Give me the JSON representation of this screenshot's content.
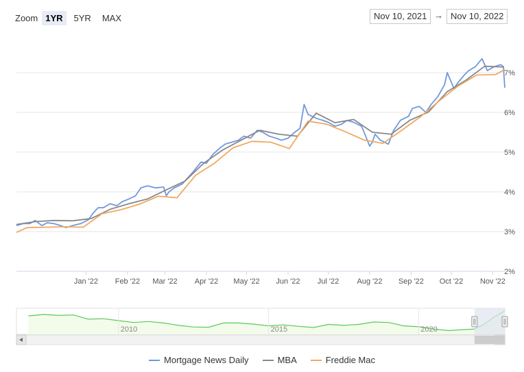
{
  "zoom": {
    "label": "Zoom",
    "buttons": [
      {
        "label": "1YR",
        "active": true
      },
      {
        "label": "5YR",
        "active": false
      },
      {
        "label": "MAX",
        "active": false
      }
    ]
  },
  "range": {
    "from": "Nov 10, 2021",
    "separator": "→",
    "to": "Nov 10, 2022"
  },
  "colors": {
    "mnd": "#6f98e0",
    "mba": "#888888",
    "fm": "#f0a860",
    "nav_line": "#5ac85a",
    "nav_fill": "#f3fbea",
    "grid": "#e6e6e6",
    "nav_select": "#dfe4ef"
  },
  "chart_data": {
    "type": "line",
    "title": "",
    "xlabel": "",
    "ylabel": "",
    "x_range": [
      "2021-11-10",
      "2022-11-10"
    ],
    "y_range": [
      2,
      8
    ],
    "y_ticks": [
      {
        "value": 2,
        "label": "2%"
      },
      {
        "value": 3,
        "label": "3%"
      },
      {
        "value": 4,
        "label": "4%"
      },
      {
        "value": 5,
        "label": "5%"
      },
      {
        "value": 6,
        "label": "6%"
      },
      {
        "value": 7,
        "label": "7%"
      }
    ],
    "x_ticks": [
      {
        "date": "2022-01-01",
        "label": "Jan '22"
      },
      {
        "date": "2022-02-01",
        "label": "Feb '22"
      },
      {
        "date": "2022-03-01",
        "label": "Mar '22"
      },
      {
        "date": "2022-04-01",
        "label": "Apr '22"
      },
      {
        "date": "2022-05-01",
        "label": "May '22"
      },
      {
        "date": "2022-06-01",
        "label": "Jun '22"
      },
      {
        "date": "2022-07-01",
        "label": "Jul '22"
      },
      {
        "date": "2022-08-01",
        "label": "Aug '22"
      },
      {
        "date": "2022-09-01",
        "label": "Sep '22"
      },
      {
        "date": "2022-10-01",
        "label": "Oct '22"
      },
      {
        "date": "2022-11-01",
        "label": "Nov '22"
      }
    ],
    "grid": true,
    "legend_position": "bottom-center",
    "series": [
      {
        "name": "Mortgage News Daily",
        "color_key": "mnd",
        "points": [
          [
            "2021-11-10",
            3.15
          ],
          [
            "2021-11-15",
            3.2
          ],
          [
            "2021-11-20",
            3.2
          ],
          [
            "2021-11-24",
            3.28
          ],
          [
            "2021-11-29",
            3.15
          ],
          [
            "2021-12-03",
            3.22
          ],
          [
            "2021-12-08",
            3.2
          ],
          [
            "2021-12-13",
            3.15
          ],
          [
            "2021-12-17",
            3.1
          ],
          [
            "2021-12-22",
            3.15
          ],
          [
            "2021-12-28",
            3.2
          ],
          [
            "2022-01-03",
            3.3
          ],
          [
            "2022-01-06",
            3.45
          ],
          [
            "2022-01-10",
            3.6
          ],
          [
            "2022-01-14",
            3.6
          ],
          [
            "2022-01-19",
            3.7
          ],
          [
            "2022-01-24",
            3.65
          ],
          [
            "2022-01-28",
            3.75
          ],
          [
            "2022-02-02",
            3.82
          ],
          [
            "2022-02-07",
            3.9
          ],
          [
            "2022-02-11",
            4.1
          ],
          [
            "2022-02-16",
            4.15
          ],
          [
            "2022-02-22",
            4.1
          ],
          [
            "2022-02-28",
            4.12
          ],
          [
            "2022-03-02",
            3.9
          ],
          [
            "2022-03-04",
            4.0
          ],
          [
            "2022-03-08",
            4.1
          ],
          [
            "2022-03-14",
            4.2
          ],
          [
            "2022-03-18",
            4.35
          ],
          [
            "2022-03-22",
            4.5
          ],
          [
            "2022-03-28",
            4.75
          ],
          [
            "2022-04-01",
            4.72
          ],
          [
            "2022-04-06",
            4.95
          ],
          [
            "2022-04-11",
            5.1
          ],
          [
            "2022-04-15",
            5.2
          ],
          [
            "2022-04-20",
            5.25
          ],
          [
            "2022-04-25",
            5.3
          ],
          [
            "2022-04-29",
            5.4
          ],
          [
            "2022-05-04",
            5.35
          ],
          [
            "2022-05-09",
            5.55
          ],
          [
            "2022-05-13",
            5.5
          ],
          [
            "2022-05-18",
            5.4
          ],
          [
            "2022-05-23",
            5.35
          ],
          [
            "2022-05-27",
            5.3
          ],
          [
            "2022-06-01",
            5.35
          ],
          [
            "2022-06-06",
            5.5
          ],
          [
            "2022-06-10",
            5.6
          ],
          [
            "2022-06-13",
            6.2
          ],
          [
            "2022-06-16",
            5.95
          ],
          [
            "2022-06-22",
            5.85
          ],
          [
            "2022-06-27",
            5.8
          ],
          [
            "2022-07-01",
            5.75
          ],
          [
            "2022-07-06",
            5.65
          ],
          [
            "2022-07-11",
            5.7
          ],
          [
            "2022-07-15",
            5.8
          ],
          [
            "2022-07-20",
            5.75
          ],
          [
            "2022-07-26",
            5.65
          ],
          [
            "2022-08-01",
            5.15
          ],
          [
            "2022-08-03",
            5.25
          ],
          [
            "2022-08-05",
            5.45
          ],
          [
            "2022-08-09",
            5.3
          ],
          [
            "2022-08-15",
            5.2
          ],
          [
            "2022-08-19",
            5.55
          ],
          [
            "2022-08-24",
            5.8
          ],
          [
            "2022-08-30",
            5.9
          ],
          [
            "2022-09-02",
            6.1
          ],
          [
            "2022-09-07",
            6.15
          ],
          [
            "2022-09-12",
            6.0
          ],
          [
            "2022-09-16",
            6.2
          ],
          [
            "2022-09-21",
            6.4
          ],
          [
            "2022-09-26",
            6.7
          ],
          [
            "2022-09-28",
            7.0
          ],
          [
            "2022-10-03",
            6.6
          ],
          [
            "2022-10-06",
            6.75
          ],
          [
            "2022-10-11",
            6.95
          ],
          [
            "2022-10-14",
            7.05
          ],
          [
            "2022-10-19",
            7.15
          ],
          [
            "2022-10-24",
            7.35
          ],
          [
            "2022-10-28",
            7.05
          ],
          [
            "2022-11-02",
            7.15
          ],
          [
            "2022-11-07",
            7.2
          ],
          [
            "2022-11-09",
            7.15
          ],
          [
            "2022-11-10",
            6.62
          ]
        ]
      },
      {
        "name": "MBA",
        "color_key": "mba",
        "points": [
          [
            "2021-11-10",
            3.18
          ],
          [
            "2021-11-24",
            3.25
          ],
          [
            "2021-12-08",
            3.28
          ],
          [
            "2021-12-22",
            3.27
          ],
          [
            "2022-01-05",
            3.33
          ],
          [
            "2022-01-19",
            3.56
          ],
          [
            "2022-02-02",
            3.7
          ],
          [
            "2022-02-16",
            3.82
          ],
          [
            "2022-03-02",
            4.05
          ],
          [
            "2022-03-16",
            4.27
          ],
          [
            "2022-03-30",
            4.72
          ],
          [
            "2022-04-13",
            5.05
          ],
          [
            "2022-04-27",
            5.3
          ],
          [
            "2022-05-11",
            5.55
          ],
          [
            "2022-05-25",
            5.45
          ],
          [
            "2022-06-08",
            5.4
          ],
          [
            "2022-06-22",
            5.98
          ],
          [
            "2022-07-06",
            5.74
          ],
          [
            "2022-07-20",
            5.82
          ],
          [
            "2022-08-03",
            5.5
          ],
          [
            "2022-08-17",
            5.45
          ],
          [
            "2022-08-31",
            5.8
          ],
          [
            "2022-09-14",
            6.01
          ],
          [
            "2022-09-28",
            6.52
          ],
          [
            "2022-10-12",
            6.81
          ],
          [
            "2022-10-26",
            7.16
          ],
          [
            "2022-11-09",
            7.14
          ]
        ]
      },
      {
        "name": "Freddie Mac",
        "color_key": "fm",
        "points": [
          [
            "2021-11-10",
            2.98
          ],
          [
            "2021-11-18",
            3.1
          ],
          [
            "2021-12-02",
            3.11
          ],
          [
            "2021-12-16",
            3.12
          ],
          [
            "2021-12-30",
            3.11
          ],
          [
            "2022-01-13",
            3.45
          ],
          [
            "2022-01-27",
            3.55
          ],
          [
            "2022-02-10",
            3.69
          ],
          [
            "2022-02-24",
            3.89
          ],
          [
            "2022-03-10",
            3.85
          ],
          [
            "2022-03-24",
            4.42
          ],
          [
            "2022-04-07",
            4.72
          ],
          [
            "2022-04-21",
            5.11
          ],
          [
            "2022-05-05",
            5.27
          ],
          [
            "2022-05-19",
            5.25
          ],
          [
            "2022-06-02",
            5.09
          ],
          [
            "2022-06-16",
            5.78
          ],
          [
            "2022-06-30",
            5.7
          ],
          [
            "2022-07-14",
            5.51
          ],
          [
            "2022-07-28",
            5.3
          ],
          [
            "2022-08-11",
            5.22
          ],
          [
            "2022-08-25",
            5.55
          ],
          [
            "2022-09-08",
            5.89
          ],
          [
            "2022-09-22",
            6.29
          ],
          [
            "2022-10-06",
            6.66
          ],
          [
            "2022-10-20",
            6.94
          ],
          [
            "2022-11-03",
            6.95
          ],
          [
            "2022-11-10",
            7.08
          ]
        ]
      }
    ],
    "navigator": {
      "labels": [
        "2010",
        "2015",
        "2020"
      ],
      "points": [
        [
          2007.0,
          5.9
        ],
        [
          2007.5,
          6.2
        ],
        [
          2008.0,
          6.0
        ],
        [
          2008.5,
          6.1
        ],
        [
          2009.0,
          5.2
        ],
        [
          2009.5,
          5.3
        ],
        [
          2010.0,
          4.9
        ],
        [
          2010.5,
          4.5
        ],
        [
          2011.0,
          4.7
        ],
        [
          2011.5,
          4.4
        ],
        [
          2012.0,
          3.9
        ],
        [
          2012.5,
          3.55
        ],
        [
          2013.0,
          3.5
        ],
        [
          2013.5,
          4.4
        ],
        [
          2014.0,
          4.4
        ],
        [
          2014.5,
          4.15
        ],
        [
          2015.0,
          3.8
        ],
        [
          2015.5,
          4.0
        ],
        [
          2016.0,
          3.7
        ],
        [
          2016.5,
          3.45
        ],
        [
          2017.0,
          4.1
        ],
        [
          2017.5,
          3.9
        ],
        [
          2018.0,
          4.1
        ],
        [
          2018.5,
          4.6
        ],
        [
          2019.0,
          4.5
        ],
        [
          2019.5,
          3.8
        ],
        [
          2020.0,
          3.6
        ],
        [
          2020.5,
          3.1
        ],
        [
          2021.0,
          2.8
        ],
        [
          2021.5,
          3.0
        ],
        [
          2021.85,
          3.1
        ],
        [
          2022.2,
          4.2
        ],
        [
          2022.5,
          5.6
        ],
        [
          2022.75,
          6.5
        ],
        [
          2022.87,
          7.0
        ]
      ],
      "range": [
        2006.6,
        2022.87
      ],
      "y_range": [
        2,
        7.5
      ],
      "selection": [
        2021.86,
        2022.87
      ]
    }
  },
  "legend": [
    {
      "name": "Mortgage News Daily",
      "color_key": "mnd"
    },
    {
      "name": "MBA",
      "color_key": "mba"
    },
    {
      "name": "Freddie Mac",
      "color_key": "fm"
    }
  ]
}
